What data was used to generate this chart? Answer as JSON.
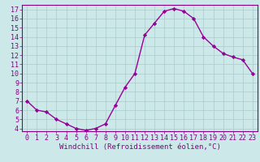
{
  "x": [
    0,
    1,
    2,
    3,
    4,
    5,
    6,
    7,
    8,
    9,
    10,
    11,
    12,
    13,
    14,
    15,
    16,
    17,
    18,
    19,
    20,
    21,
    22,
    23
  ],
  "y": [
    7.0,
    6.0,
    5.8,
    5.0,
    4.5,
    4.0,
    3.8,
    4.0,
    4.5,
    6.5,
    8.5,
    10.0,
    14.2,
    15.5,
    16.8,
    17.1,
    16.8,
    16.0,
    14.0,
    13.0,
    12.2,
    11.8,
    11.5,
    10.0
  ],
  "line_color": "#990099",
  "marker": "D",
  "marker_size": 2.2,
  "line_width": 1.0,
  "bg_color": "#cce8e8",
  "plot_bg_color": "#cce8e8",
  "grid_color": "#aacccc",
  "xlabel": "Windchill (Refroidissement éolien,°C)",
  "xlabel_fontsize": 6.5,
  "xlabel_color": "#880088",
  "tick_color": "#880088",
  "tick_fontsize": 6.0,
  "ylim": [
    3.7,
    17.5
  ],
  "xlim": [
    -0.5,
    23.5
  ],
  "yticks": [
    4,
    5,
    6,
    7,
    8,
    9,
    10,
    11,
    12,
    13,
    14,
    15,
    16,
    17
  ],
  "xticks": [
    0,
    1,
    2,
    3,
    4,
    5,
    6,
    7,
    8,
    9,
    10,
    11,
    12,
    13,
    14,
    15,
    16,
    17,
    18,
    19,
    20,
    21,
    22,
    23
  ]
}
